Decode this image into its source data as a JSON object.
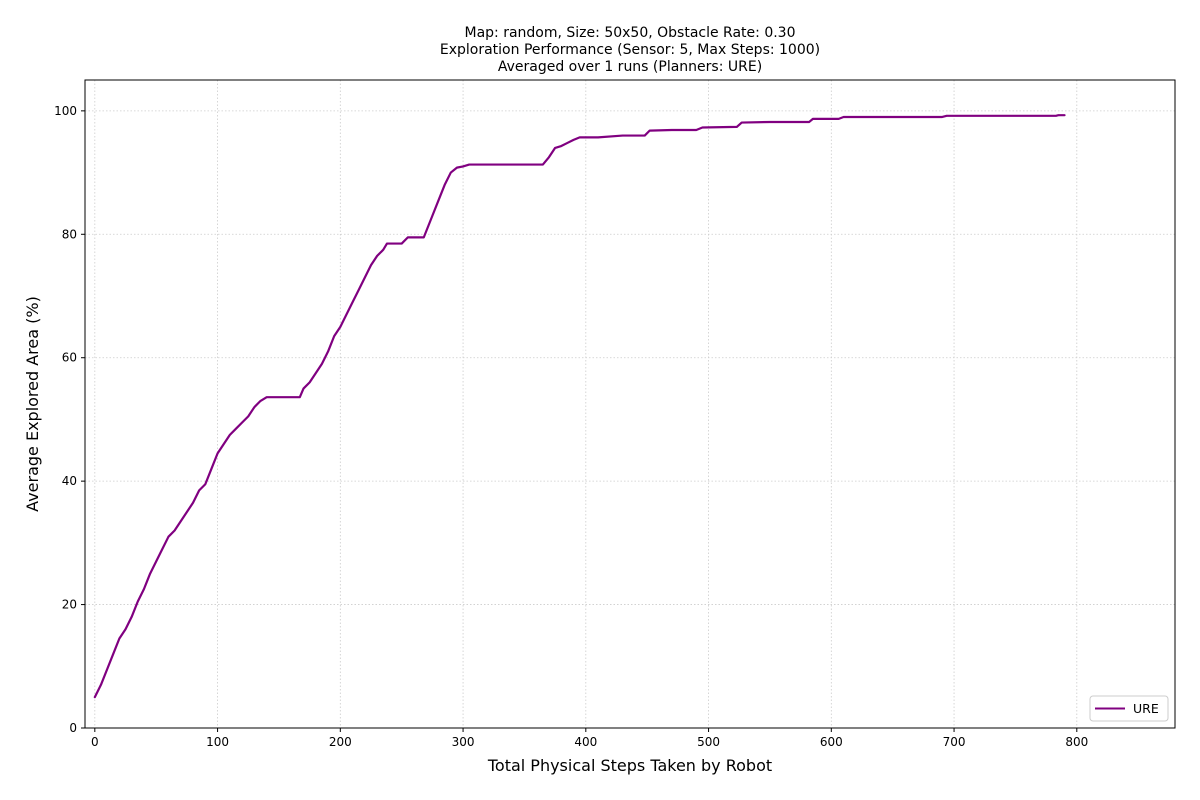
{
  "chart_data": {
    "type": "line",
    "title_lines": [
      "Map: random, Size: 50x50, Obstacle Rate: 0.30",
      "Exploration Performance (Sensor: 5, Max Steps: 1000)",
      "Averaged over 1 runs (Planners: URE)"
    ],
    "xlabel": "Total Physical Steps Taken by Robot",
    "ylabel": "Average Explored Area (%)",
    "xlim": [
      -8,
      880
    ],
    "ylim": [
      0,
      105
    ],
    "xticks": [
      0,
      100,
      200,
      300,
      400,
      500,
      600,
      700,
      800
    ],
    "yticks": [
      0,
      20,
      40,
      60,
      80,
      100
    ],
    "grid": true,
    "legend_position": "lower-right",
    "colors": {
      "URE": "#800080"
    },
    "series": [
      {
        "name": "URE",
        "x": [
          0,
          5,
          10,
          15,
          20,
          25,
          30,
          35,
          40,
          45,
          50,
          55,
          60,
          65,
          70,
          75,
          80,
          85,
          90,
          95,
          100,
          105,
          110,
          115,
          120,
          125,
          130,
          135,
          140,
          150,
          160,
          167,
          170,
          175,
          180,
          185,
          190,
          195,
          200,
          205,
          210,
          215,
          220,
          225,
          230,
          235,
          238,
          240,
          250,
          255,
          260,
          268,
          275,
          280,
          285,
          290,
          295,
          300,
          305,
          310,
          330,
          350,
          365,
          370,
          375,
          380,
          385,
          390,
          395,
          410,
          430,
          448,
          452,
          470,
          490,
          495,
          523,
          527,
          550,
          582,
          585,
          606,
          610,
          650,
          690,
          694,
          700,
          750,
          783,
          785,
          790
        ],
        "y": [
          5.0,
          7.0,
          9.5,
          12.0,
          14.5,
          16.0,
          18.0,
          20.5,
          22.5,
          25.0,
          27.0,
          29.0,
          31.0,
          32.0,
          33.5,
          35.0,
          36.5,
          38.5,
          39.5,
          42.0,
          44.5,
          46.0,
          47.5,
          48.5,
          49.5,
          50.5,
          52.0,
          53.0,
          53.6,
          53.6,
          53.6,
          53.6,
          55.0,
          56.0,
          57.5,
          59.0,
          61.0,
          63.5,
          65.0,
          67.0,
          69.0,
          71.0,
          73.0,
          75.0,
          76.5,
          77.5,
          78.5,
          78.5,
          78.5,
          79.5,
          79.5,
          79.5,
          83.0,
          85.5,
          88.0,
          90.0,
          90.8,
          91.0,
          91.3,
          91.3,
          91.3,
          91.3,
          91.3,
          92.5,
          94.0,
          94.3,
          94.8,
          95.3,
          95.7,
          95.7,
          96.0,
          96.0,
          96.8,
          96.9,
          96.9,
          97.3,
          97.4,
          98.1,
          98.2,
          98.2,
          98.7,
          98.7,
          99.0,
          99.0,
          99.0,
          99.2,
          99.2,
          99.2,
          99.2,
          99.3,
          99.3
        ]
      }
    ]
  }
}
